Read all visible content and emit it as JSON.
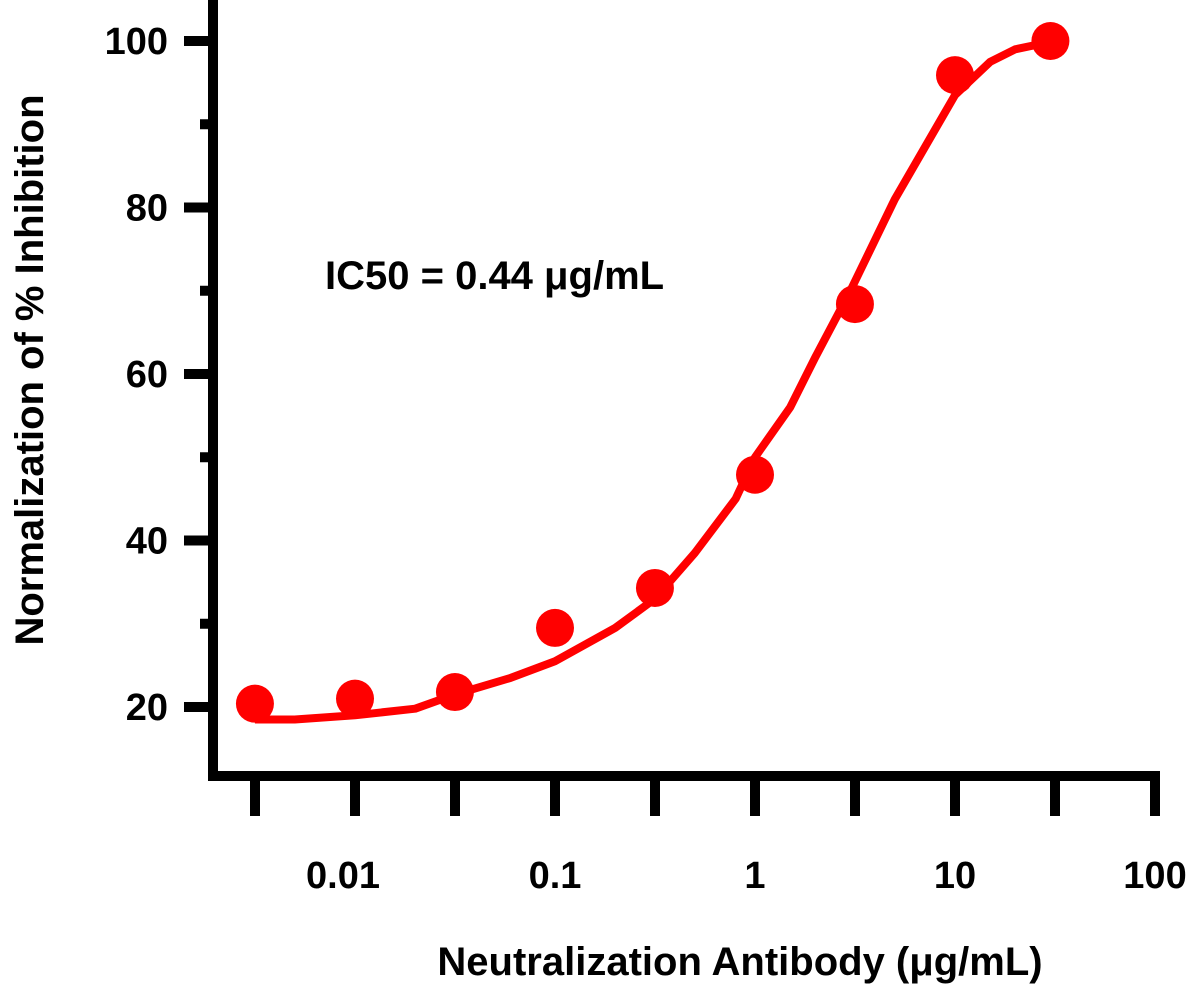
{
  "chart_data": {
    "type": "scatter",
    "xlabel": "Neutralization Antibody (μg/mL)",
    "ylabel": "Normalization of % Inhibition",
    "annotation": "IC50 = 0.44 μg/mL",
    "x_scale": "log",
    "xlim": [
      0.00316,
      100
    ],
    "ylim": [
      16,
      105
    ],
    "x_tick_labels": [
      "0.01",
      "0.1",
      "1",
      "10",
      "100"
    ],
    "x_tick_values": [
      0.01,
      0.1,
      1,
      10,
      100
    ],
    "y_ticks": [
      20,
      40,
      60,
      80,
      100
    ],
    "y_tick_labels": [
      "20",
      "40",
      "60",
      "80",
      "100"
    ],
    "grid": false,
    "color": "#ff0000",
    "points": {
      "x": [
        0.00316,
        0.01,
        0.0316,
        0.1,
        0.316,
        1,
        3.16,
        10,
        30
      ],
      "y": [
        20.4,
        21.0,
        21.8,
        29.5,
        34.3,
        47.9,
        68.4,
        95.9,
        100
      ]
    },
    "fit_curve": {
      "x": [
        0.00316,
        0.005,
        0.01,
        0.02,
        0.0316,
        0.06,
        0.1,
        0.2,
        0.316,
        0.5,
        0.8,
        1,
        1.5,
        2,
        3,
        5,
        10,
        15,
        20,
        31.6
      ],
      "y": [
        18.5,
        18.5,
        19,
        19.8,
        21.5,
        23.5,
        25.5,
        29.5,
        33,
        38.5,
        45,
        50,
        56,
        62,
        70,
        81,
        93.5,
        97.5,
        99,
        100
      ]
    }
  }
}
